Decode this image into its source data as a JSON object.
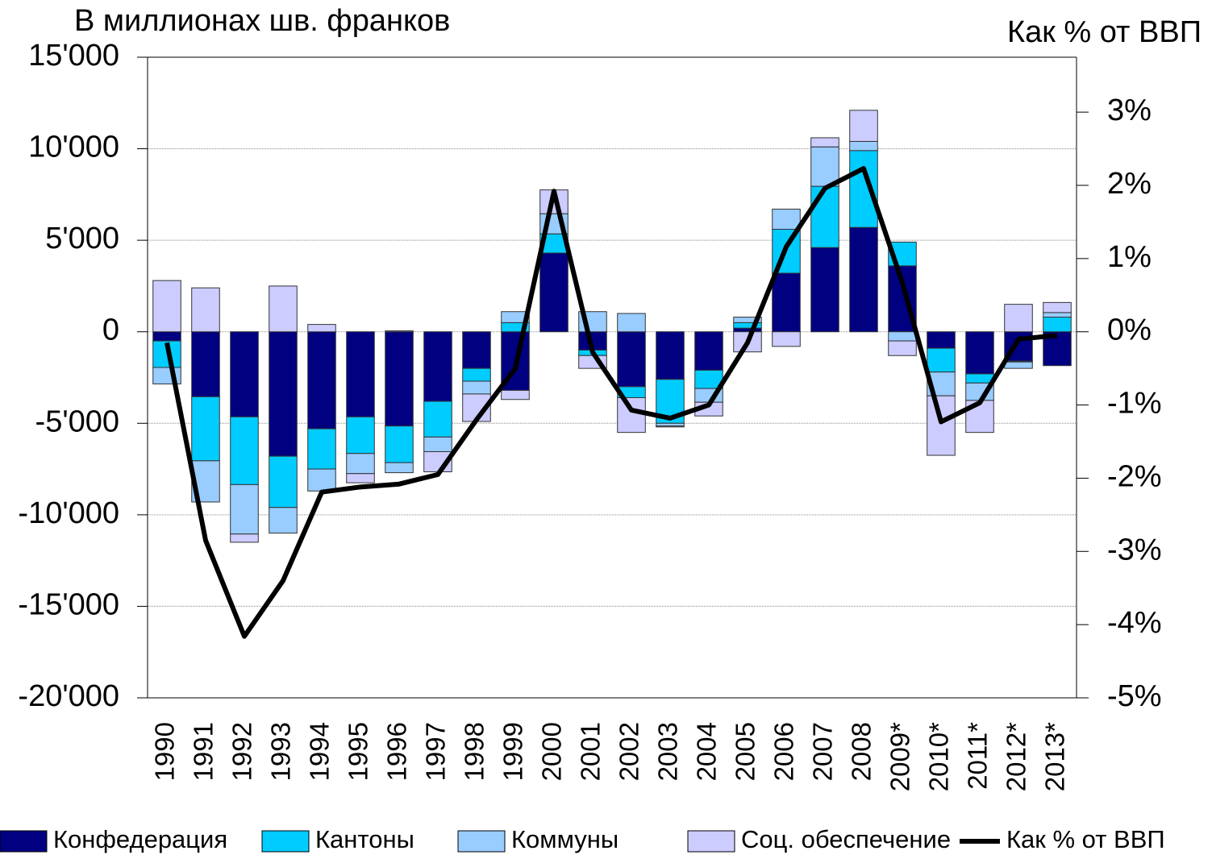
{
  "chart_data": {
    "type": "bar",
    "y_label": "В миллионах шв. франков",
    "y2_label": "Как % от ВВП",
    "categories": [
      "1990",
      "1991",
      "1992",
      "1993",
      "1994",
      "1995",
      "1996",
      "1997",
      "1998",
      "1999",
      "2000",
      "2001",
      "2002",
      "2003",
      "2004",
      "2005",
      "2006",
      "2007",
      "2008",
      "2009*",
      "2010*",
      "2011*",
      "2012*",
      "2013*"
    ],
    "stacked": true,
    "series": [
      {
        "name": "Конфедерация",
        "color": "#000080",
        "values": [
          -500,
          -3550,
          -4650,
          -6800,
          -5300,
          -4650,
          -5150,
          -3800,
          -2000,
          -3200,
          4300,
          -1000,
          -3000,
          -2600,
          -2100,
          200,
          3200,
          4600,
          5700,
          3600,
          -900,
          -2300,
          -1600,
          -1850
        ]
      },
      {
        "name": "Кантоны",
        "color": "#00ccff",
        "values": [
          -1450,
          -3500,
          -3700,
          -2800,
          -2200,
          -2000,
          -2000,
          -1950,
          -700,
          500,
          1050,
          -300,
          -600,
          -2400,
          -1000,
          300,
          2400,
          3350,
          4200,
          1300,
          -1300,
          -500,
          -50,
          800
        ]
      },
      {
        "name": "Коммуны",
        "color": "#99ccff",
        "values": [
          -900,
          -2250,
          -2700,
          -1400,
          -1200,
          -1100,
          -550,
          -800,
          -700,
          600,
          1100,
          1100,
          1000,
          -150,
          -750,
          300,
          1100,
          2150,
          500,
          -500,
          -1300,
          -950,
          -350,
          250
        ]
      },
      {
        "name": "Соц. обеспечение",
        "color": "#ccccff",
        "values": [
          2800,
          2400,
          -450,
          2500,
          400,
          -500,
          50,
          -1100,
          -1500,
          -500,
          1300,
          -700,
          -1900,
          -50,
          -750,
          -1100,
          -800,
          500,
          1700,
          -800,
          -3250,
          -1750,
          1500,
          550
        ]
      },
      {
        "name": "Как % от ВВП",
        "type": "line",
        "axis": "y2",
        "color": "#000000",
        "values": [
          -0.15,
          -2.85,
          -4.16,
          -3.4,
          -2.19,
          -2.12,
          -2.08,
          -1.95,
          -1.2,
          -0.5,
          1.92,
          -0.28,
          -1.07,
          -1.18,
          -1.0,
          -0.15,
          1.16,
          1.96,
          2.23,
          0.67,
          -1.23,
          -0.97,
          -0.1,
          -0.05
        ]
      }
    ],
    "ylim": [
      -20000,
      15000
    ],
    "yticks": [
      {
        "value": -20000,
        "label": "-20'000"
      },
      {
        "value": -15000,
        "label": "-15'000"
      },
      {
        "value": -10000,
        "label": "-10'000"
      },
      {
        "value": -5000,
        "label": "-5'000"
      },
      0,
      {
        "value": 5000,
        "label": "5'000"
      },
      {
        "value": 10000,
        "label": "10'000"
      },
      {
        "value": 15000,
        "label": "15'000"
      }
    ],
    "y2lim": [
      -5,
      3.75
    ],
    "y2ticks": [
      {
        "value": -5,
        "label": "-5%"
      },
      {
        "value": -4,
        "label": "-4%"
      },
      {
        "value": -3,
        "label": "-3%"
      },
      {
        "value": -2,
        "label": "-2%"
      },
      {
        "value": -1,
        "label": "-1%"
      },
      {
        "value": 0,
        "label": "0%"
      },
      {
        "value": 1,
        "label": "1%"
      },
      {
        "value": 2,
        "label": "2%"
      },
      {
        "value": 3,
        "label": "3%"
      }
    ],
    "grid": true,
    "legend": "bottom"
  }
}
